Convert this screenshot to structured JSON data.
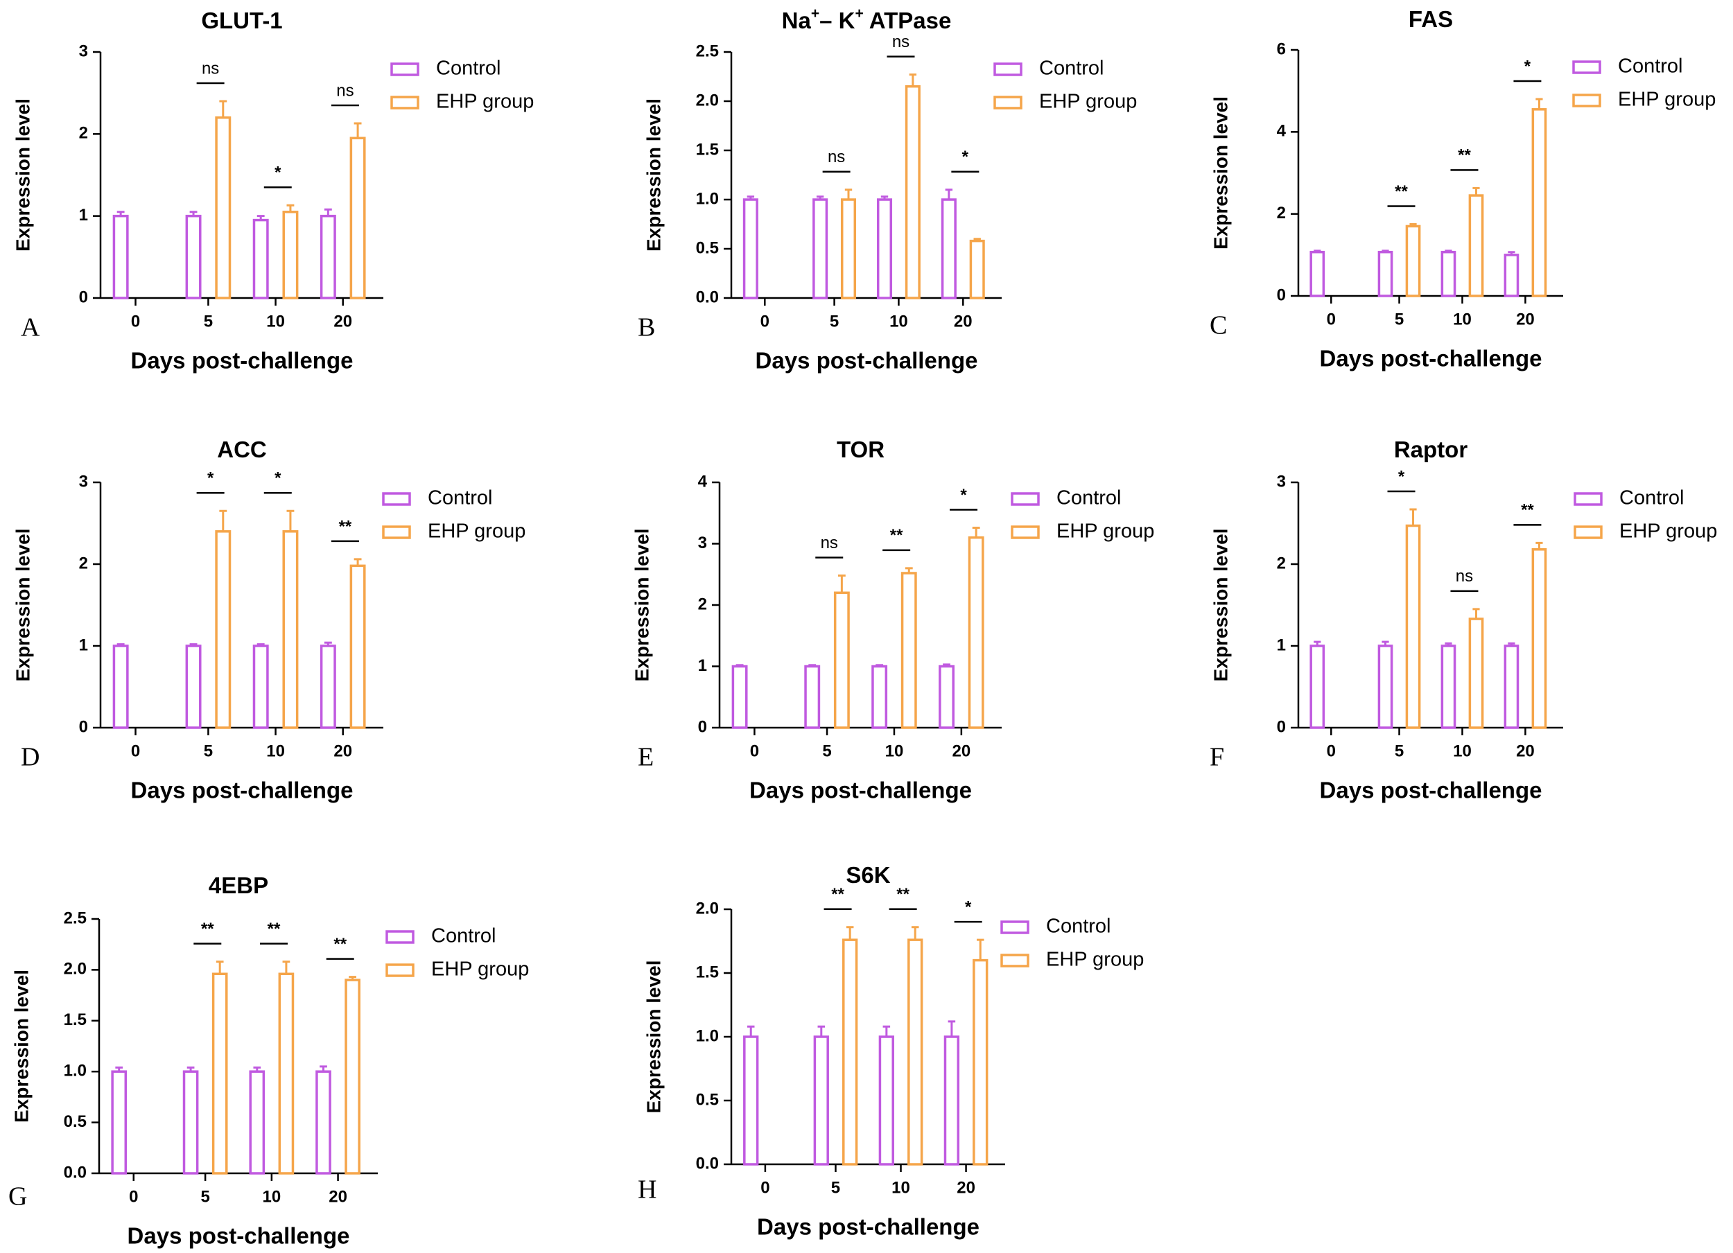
{
  "chart_data": [
    {
      "type": "bar",
      "letter": "A",
      "title_parts": [
        {
          "text": "GLUT-1"
        }
      ],
      "xlabel": "Days post-challenge",
      "ylabel": "Expression level",
      "categories": [
        "0",
        "5",
        "10",
        "20"
      ],
      "ylim": [
        0,
        3
      ],
      "yticks": [
        "0",
        "1",
        "2",
        "3"
      ],
      "series": [
        {
          "name": "Control",
          "color": "#c05ae0",
          "values": [
            1.0,
            1.0,
            0.95,
            1.0
          ],
          "errors": [
            0.05,
            0.05,
            0.05,
            0.08
          ]
        },
        {
          "name": "EHP group",
          "color": "#f5a54a",
          "values": [
            null,
            2.2,
            1.05,
            1.95
          ],
          "errors": [
            null,
            0.2,
            0.08,
            0.18
          ]
        }
      ],
      "significance": [
        null,
        "ns",
        "*",
        "ns"
      ]
    },
    {
      "type": "bar",
      "letter": "B",
      "title_parts": [
        {
          "text": "Na"
        },
        {
          "text": "+",
          "sup": true
        },
        {
          "text": "– K"
        },
        {
          "text": "+",
          "sup": true
        },
        {
          "text": " ATPase"
        }
      ],
      "xlabel": "Days post-challenge",
      "ylabel": "Expression level",
      "categories": [
        "0",
        "5",
        "10",
        "20"
      ],
      "ylim": [
        0,
        2.5
      ],
      "yticks": [
        "0.0",
        "0.5",
        "1.0",
        "1.5",
        "2.0",
        "2.5"
      ],
      "series": [
        {
          "name": "Control",
          "color": "#c05ae0",
          "values": [
            1.0,
            1.0,
            1.0,
            1.0
          ],
          "errors": [
            0.03,
            0.03,
            0.03,
            0.1
          ]
        },
        {
          "name": "EHP group",
          "color": "#f5a54a",
          "values": [
            null,
            1.0,
            2.15,
            0.58
          ],
          "errors": [
            null,
            0.1,
            0.12,
            0.02
          ]
        }
      ],
      "significance": [
        null,
        "ns",
        "ns",
        "*"
      ]
    },
    {
      "type": "bar",
      "letter": "C",
      "title_parts": [
        {
          "text": "FAS"
        }
      ],
      "xlabel": "Days post-challenge",
      "ylabel": "Expression level",
      "categories": [
        "0",
        "5",
        "10",
        "20"
      ],
      "ylim": [
        0,
        6
      ],
      "yticks": [
        "0",
        "2",
        "4",
        "6"
      ],
      "series": [
        {
          "name": "Control",
          "color": "#c05ae0",
          "values": [
            1.07,
            1.07,
            1.07,
            1.0
          ],
          "errors": [
            0.03,
            0.03,
            0.03,
            0.07
          ]
        },
        {
          "name": "EHP group",
          "color": "#f5a54a",
          "values": [
            null,
            1.7,
            2.45,
            4.55
          ],
          "errors": [
            null,
            0.05,
            0.18,
            0.25
          ]
        }
      ],
      "significance": [
        null,
        "**",
        "**",
        "*"
      ]
    },
    {
      "type": "bar",
      "letter": "D",
      "title_parts": [
        {
          "text": "ACC"
        }
      ],
      "xlabel": "Days post-challenge",
      "ylabel": "Expression level",
      "categories": [
        "0",
        "5",
        "10",
        "20"
      ],
      "ylim": [
        0,
        3
      ],
      "yticks": [
        "0",
        "1",
        "2",
        "3"
      ],
      "series": [
        {
          "name": "Control",
          "color": "#c05ae0",
          "values": [
            1.0,
            1.0,
            1.0,
            1.0
          ],
          "errors": [
            0.02,
            0.02,
            0.02,
            0.04
          ]
        },
        {
          "name": "EHP group",
          "color": "#f5a54a",
          "values": [
            null,
            2.4,
            2.4,
            1.98
          ],
          "errors": [
            null,
            0.25,
            0.25,
            0.08
          ]
        }
      ],
      "significance": [
        null,
        "*",
        "*",
        "**"
      ]
    },
    {
      "type": "bar",
      "letter": "E",
      "title_parts": [
        {
          "text": "TOR"
        }
      ],
      "xlabel": "Days post-challenge",
      "ylabel": "Expression level",
      "categories": [
        "0",
        "5",
        "10",
        "20"
      ],
      "ylim": [
        0,
        4
      ],
      "yticks": [
        "0",
        "1",
        "2",
        "3",
        "4"
      ],
      "series": [
        {
          "name": "Control",
          "color": "#c05ae0",
          "values": [
            1.0,
            1.0,
            1.0,
            1.0
          ],
          "errors": [
            0.02,
            0.02,
            0.02,
            0.03
          ]
        },
        {
          "name": "EHP group",
          "color": "#f5a54a",
          "values": [
            null,
            2.2,
            2.52,
            3.1
          ],
          "errors": [
            null,
            0.28,
            0.08,
            0.16
          ]
        }
      ],
      "significance": [
        null,
        "ns",
        "**",
        "*"
      ]
    },
    {
      "type": "bar",
      "letter": "F",
      "title_parts": [
        {
          "text": "Raptor"
        }
      ],
      "xlabel": "Days post-challenge",
      "ylabel": "Expression level",
      "categories": [
        "0",
        "5",
        "10",
        "20"
      ],
      "ylim": [
        0,
        3
      ],
      "yticks": [
        "0",
        "1",
        "2",
        "3"
      ],
      "series": [
        {
          "name": "Control",
          "color": "#c05ae0",
          "values": [
            1.0,
            1.0,
            1.0,
            1.0
          ],
          "errors": [
            0.05,
            0.05,
            0.03,
            0.03
          ]
        },
        {
          "name": "EHP group",
          "color": "#f5a54a",
          "values": [
            null,
            2.47,
            1.33,
            2.18
          ],
          "errors": [
            null,
            0.2,
            0.12,
            0.08
          ]
        }
      ],
      "significance": [
        null,
        "*",
        "ns",
        "**"
      ]
    },
    {
      "type": "bar",
      "letter": "G",
      "title_parts": [
        {
          "text": "4EBP"
        }
      ],
      "xlabel": "Days post-challenge",
      "ylabel": "Expression level",
      "categories": [
        "0",
        "5",
        "10",
        "20"
      ],
      "ylim": [
        0,
        2.5
      ],
      "yticks": [
        "0.0",
        "0.5",
        "1.0",
        "1.5",
        "2.0",
        "2.5"
      ],
      "series": [
        {
          "name": "Control",
          "color": "#c05ae0",
          "values": [
            1.0,
            1.0,
            1.0,
            1.0
          ],
          "errors": [
            0.04,
            0.04,
            0.04,
            0.05
          ]
        },
        {
          "name": "EHP group",
          "color": "#f5a54a",
          "values": [
            null,
            1.96,
            1.96,
            1.9
          ],
          "errors": [
            null,
            0.12,
            0.12,
            0.03
          ]
        }
      ],
      "significance": [
        null,
        "**",
        "**",
        "**"
      ]
    },
    {
      "type": "bar",
      "letter": "H",
      "title_parts": [
        {
          "text": "S6K"
        }
      ],
      "xlabel": "Days post-challenge",
      "ylabel": "Expression level",
      "categories": [
        "0",
        "5",
        "10",
        "20"
      ],
      "ylim": [
        0,
        2.0
      ],
      "yticks": [
        "0.0",
        "0.5",
        "1.0",
        "1.5",
        "2.0"
      ],
      "series": [
        {
          "name": "Control",
          "color": "#c05ae0",
          "values": [
            1.0,
            1.0,
            1.0,
            1.0
          ],
          "errors": [
            0.08,
            0.08,
            0.08,
            0.12
          ]
        },
        {
          "name": "EHP group",
          "color": "#f5a54a",
          "values": [
            null,
            1.76,
            1.76,
            1.6
          ],
          "errors": [
            null,
            0.1,
            0.1,
            0.16
          ]
        }
      ],
      "significance": [
        null,
        "**",
        "**",
        "*"
      ]
    }
  ]
}
